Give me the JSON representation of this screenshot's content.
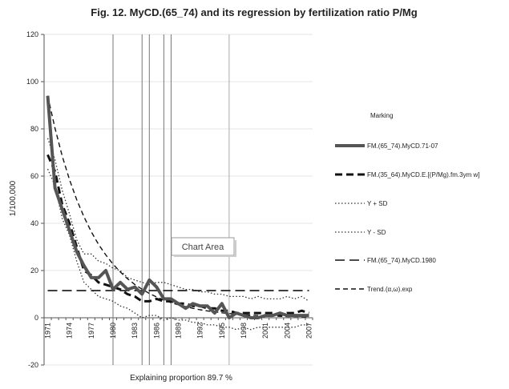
{
  "chart_data": {
    "type": "line",
    "title": "Fig. 12. MyCD.(65_74) and its regression by fertilization ratio P/Mg",
    "xlabel": "Explaining proportion 89.7 %",
    "ylabel": "1/100,000",
    "ylim": [
      -20,
      120
    ],
    "yticks": [
      -20,
      0,
      20,
      40,
      60,
      80,
      100,
      120
    ],
    "xlim": [
      1971,
      2007
    ],
    "xticks": [
      1971,
      1974,
      1977,
      1980,
      1983,
      1986,
      1989,
      1992,
      1995,
      1998,
      2001,
      2004,
      2007
    ],
    "x_tick_labels": [
      "1971",
      "1974",
      "1977",
      "1980",
      "1983",
      "1986",
      "1989",
      "1992",
      "1995",
      "1998",
      "2001",
      "2004",
      "2007"
    ],
    "vertical_lines": [
      {
        "x": 1980,
        "color": "#777777"
      },
      {
        "x": 1984,
        "color": "#777777"
      },
      {
        "x": 1985,
        "color": "#777777"
      },
      {
        "x": 1987,
        "color": "#777777"
      },
      {
        "x": 1988,
        "color": "#777777"
      },
      {
        "x": 1996,
        "color": "#aaaaaa"
      }
    ],
    "legend_title": "Marking",
    "chart_area_label": "Chart Area",
    "series": [
      {
        "name": "FM.(65_74).MyCD.71-07",
        "style": "thick",
        "x": [
          1971,
          1972,
          1973,
          1974,
          1975,
          1976,
          1977,
          1978,
          1979,
          1980,
          1981,
          1982,
          1983,
          1984,
          1985,
          1986,
          1987,
          1988,
          1989,
          1990,
          1991,
          1992,
          1993,
          1994,
          1995,
          1996,
          1997,
          1998,
          1999,
          2000,
          2001,
          2002,
          2003,
          2004,
          2005,
          2006,
          2007
        ],
        "values": [
          94,
          55,
          46,
          37,
          28,
          22,
          17,
          17,
          20,
          12,
          15,
          12,
          13,
          10,
          16,
          13,
          8,
          8,
          6,
          4,
          6,
          5,
          5,
          2,
          6,
          0,
          2,
          1,
          0,
          0,
          1,
          1,
          2,
          1,
          1,
          1,
          1
        ]
      },
      {
        "name": "FM.(35_64).MyCD.E.[(P/Mg).fm.3ym w]",
        "style": "heavy-dash",
        "x": [
          1971,
          1972,
          1973,
          1974,
          1975,
          1976,
          1977,
          1978,
          1979,
          1980,
          1981,
          1982,
          1983,
          1984,
          1985,
          1986,
          1987,
          1988,
          1989,
          1990,
          1991,
          1992,
          1993,
          1994,
          1995,
          1996,
          1997,
          1998,
          1999,
          2000,
          2001,
          2002,
          2003,
          2004,
          2005,
          2006,
          2007
        ],
        "values": [
          69,
          62,
          48,
          40,
          30,
          20,
          18,
          15,
          14,
          13,
          12,
          10,
          9,
          7,
          7,
          8,
          7,
          7,
          6,
          6,
          5,
          5,
          4,
          4,
          3,
          3,
          2,
          2,
          2,
          2,
          2,
          2,
          1,
          2,
          2,
          3,
          2
        ]
      },
      {
        "name": "Y + SD",
        "style": "dotted",
        "x": [
          1971,
          1972,
          1973,
          1974,
          1975,
          1976,
          1977,
          1978,
          1979,
          1980,
          1981,
          1982,
          1983,
          1984,
          1985,
          1986,
          1987,
          1988,
          1989,
          1990,
          1991,
          1992,
          1993,
          1994,
          1995,
          1996,
          1997,
          1998,
          1999,
          2000,
          2001,
          2002,
          2003,
          2004,
          2005,
          2006,
          2007
        ],
        "values": [
          76,
          67,
          54,
          44,
          33,
          27,
          27,
          24,
          23,
          21,
          20,
          17,
          16,
          15,
          14,
          15,
          15,
          14,
          13,
          12,
          12,
          11,
          11,
          10,
          10,
          9,
          9,
          9,
          8,
          9,
          8,
          8,
          8,
          9,
          8,
          9,
          7
        ]
      },
      {
        "name": "Y - SD",
        "style": "dotted",
        "x": [
          1971,
          1972,
          1973,
          1974,
          1975,
          1976,
          1977,
          1978,
          1979,
          1980,
          1981,
          1982,
          1983,
          1984,
          1985,
          1986,
          1987,
          1988,
          1989,
          1990,
          1991,
          1992,
          1993,
          1994,
          1995,
          1996,
          1997,
          1998,
          1999,
          2000,
          2001,
          2002,
          2003,
          2004,
          2005,
          2006,
          2007
        ],
        "values": [
          63,
          56,
          42,
          35,
          24,
          15,
          12,
          9,
          8,
          7,
          5,
          4,
          2,
          0,
          1,
          1,
          -1,
          0,
          -1,
          -1,
          -2,
          -2,
          -3,
          -3,
          -4,
          -4,
          -5,
          -4,
          -5,
          -4,
          -4,
          -4,
          -4,
          -4,
          -4,
          -3,
          -3
        ]
      },
      {
        "name": "FM.(65_74).MyCD.1980",
        "style": "long-dash",
        "x": [
          1971,
          2007
        ],
        "values": [
          11.5,
          11.5
        ]
      },
      {
        "name": "Trend.(α,ω).exp",
        "style": "medium-dash",
        "x": [
          1971,
          1972,
          1973,
          1974,
          1975,
          1976,
          1977,
          1978,
          1979,
          1980,
          1981,
          1982,
          1983,
          1984,
          1985,
          1986,
          1987,
          1988,
          1989,
          1990,
          1991,
          1992,
          1993,
          1994,
          1995,
          1996,
          1997,
          1998,
          1999,
          2000,
          2001,
          2002,
          2003,
          2004,
          2005,
          2006,
          2007
        ],
        "values": [
          94,
          80.3,
          68.5,
          58.5,
          50,
          42.7,
          36.4,
          31.1,
          26.6,
          22.7,
          19.4,
          16.5,
          14.1,
          12.1,
          10.3,
          8.8,
          7.5,
          6.4,
          5.5,
          4.7,
          4,
          3.4,
          2.9,
          2.5,
          2.1,
          1.8,
          1.6,
          1.3,
          1.1,
          1,
          0.8,
          0.7,
          0.6,
          0.5,
          0.5,
          0.4,
          0.3
        ]
      }
    ]
  }
}
